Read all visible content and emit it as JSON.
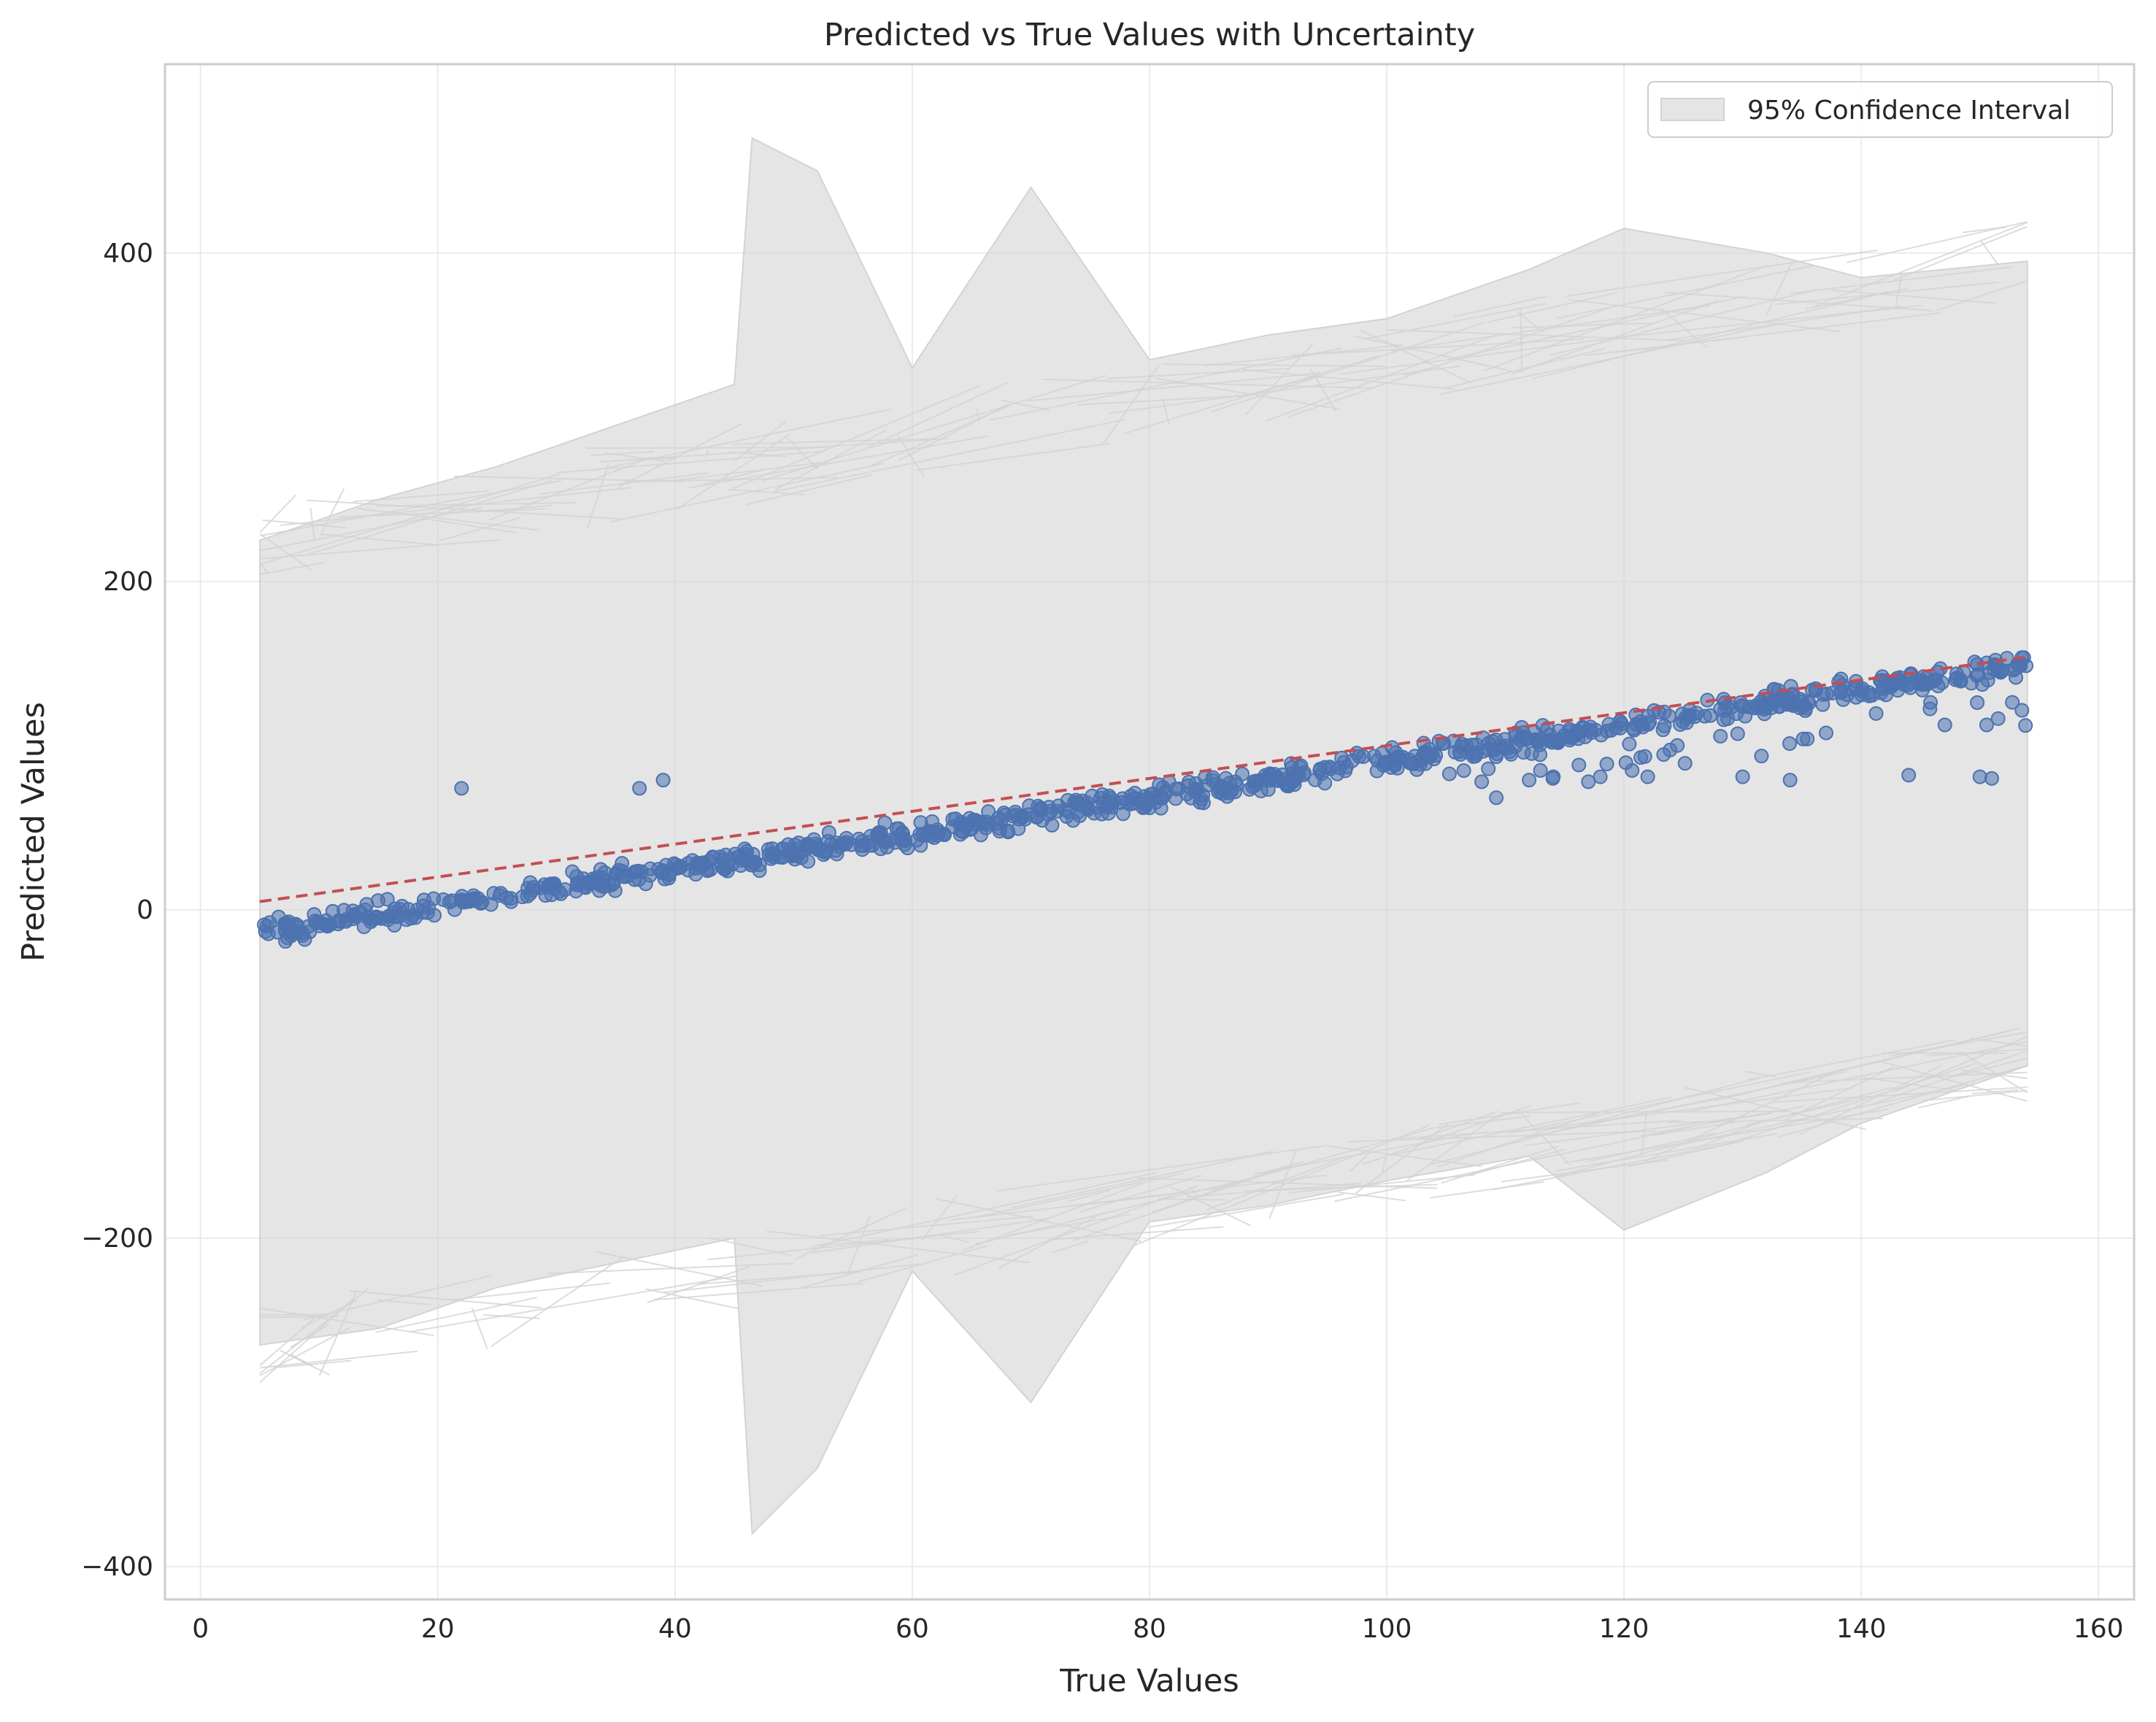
{
  "chart_data": {
    "type": "scatter",
    "title": "Predicted vs True Values with Uncertainty",
    "xlabel": "True Values",
    "ylabel": "Predicted Values",
    "xlim": [
      -3,
      163
    ],
    "ylim": [
      -420,
      515
    ],
    "xticks": [
      0,
      20,
      40,
      60,
      80,
      100,
      120,
      140,
      160
    ],
    "yticks": [
      -400,
      -200,
      0,
      200,
      400
    ],
    "grid": true,
    "legend": {
      "position": "top-right",
      "entries": [
        "95% Confidence Interval"
      ]
    },
    "colors": {
      "points": "#4c72b0",
      "reference_line": "#c44e52",
      "band": "#d3d3d3",
      "grid": "#ebebeb",
      "spine": "#cccccc"
    },
    "reference_line": {
      "x": [
        5,
        154
      ],
      "y": [
        5,
        154
      ],
      "style": "dashed"
    },
    "series": [
      {
        "name": "95% Confidence Interval",
        "kind": "band",
        "x": [
          5,
          15,
          25,
          35,
          45,
          46.5,
          52,
          60,
          70,
          80,
          90,
          100,
          112,
          120,
          132,
          140,
          154
        ],
        "upper": [
          225,
          250,
          270,
          295,
          320,
          470,
          450,
          330,
          440,
          335,
          350,
          360,
          390,
          415,
          400,
          385,
          395
        ],
        "lower": [
          -265,
          -255,
          -230,
          -215,
          -200,
          -380,
          -340,
          -220,
          -300,
          -190,
          -180,
          -165,
          -150,
          -195,
          -160,
          -130,
          -95
        ]
      }
    ],
    "outliers": [
      {
        "x": 22,
        "y": 74
      },
      {
        "x": 37,
        "y": 74
      },
      {
        "x": 39,
        "y": 79
      },
      {
        "x": 112,
        "y": 79
      },
      {
        "x": 114,
        "y": 80
      },
      {
        "x": 118,
        "y": 81
      },
      {
        "x": 122,
        "y": 81
      },
      {
        "x": 130,
        "y": 81
      },
      {
        "x": 134,
        "y": 79
      },
      {
        "x": 144,
        "y": 82
      },
      {
        "x": 150,
        "y": 81
      },
      {
        "x": 151,
        "y": 80
      },
      {
        "x": 108,
        "y": 78
      },
      {
        "x": 117,
        "y": 78
      }
    ]
  }
}
